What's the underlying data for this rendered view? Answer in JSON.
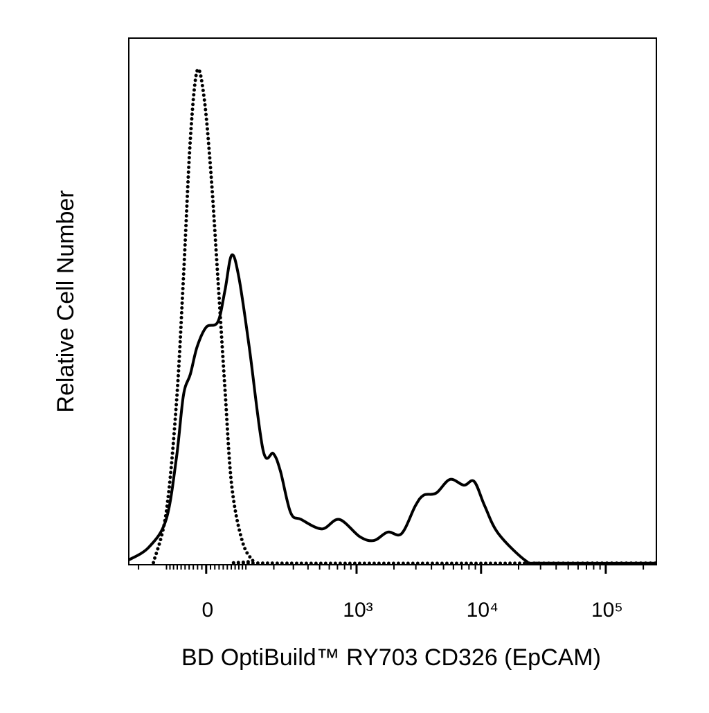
{
  "chart_data": {
    "type": "line",
    "xlabel": "BD OptiBuild™ RY703 CD326 (EpCAM)",
    "ylabel": "Relative Cell Number",
    "xscale": "biexponential",
    "xlim": [
      -246,
      254600
    ],
    "ylim": [
      0,
      100
    ],
    "xticks": [
      0,
      {
        "value": 1000,
        "label": "10³"
      },
      {
        "value": 10000,
        "label": "10⁴"
      },
      {
        "value": 100000,
        "label": "10⁵"
      }
    ],
    "xminorticks": [
      -200,
      -100,
      -90,
      -80,
      -70,
      -60,
      -50,
      -40,
      -30,
      -20,
      -10,
      10,
      20,
      30,
      40,
      50,
      60,
      70,
      80,
      90,
      100,
      200,
      300,
      400,
      500,
      600,
      700,
      800,
      900,
      2000,
      3000,
      4000,
      5000,
      6000,
      7000,
      8000,
      9000,
      20000,
      30000,
      40000,
      50000,
      60000,
      70000,
      80000,
      90000,
      200000
    ],
    "series": [
      {
        "color": "#000000",
        "style": "solid",
        "x": [
          -246,
          -159,
          -101,
          -72,
          -54,
          -37,
          -21,
          0,
          27,
          44,
          61,
          80,
          110,
          157,
          198,
          230,
          284,
          350,
          522,
          723,
          1065,
          1380,
          1781,
          2302,
          2973,
          3463,
          4362,
          5631,
          7275,
          8813,
          10680,
          13780,
          22980,
          29690,
          254600
        ],
        "values": [
          0.9,
          3.3,
          8.6,
          20.4,
          32.2,
          36.2,
          41.4,
          45.1,
          46.1,
          52.0,
          58.8,
          54.6,
          41.4,
          21.7,
          21.1,
          17.8,
          9.9,
          8.6,
          6.8,
          8.6,
          5.3,
          4.6,
          6.2,
          5.9,
          11.2,
          13.2,
          13.6,
          16.2,
          15.1,
          15.8,
          11.2,
          5.9,
          0.7,
          0.3,
          0.3
        ]
      },
      {
        "color": "#000000",
        "style": "dotted",
        "x": [
          -142,
          -101,
          -72,
          -54,
          -37,
          -21,
          -5,
          11,
          27,
          44,
          61,
          89,
          121,
          157,
          254600
        ],
        "values": [
          0.4,
          9.9,
          30.9,
          54.6,
          80.9,
          93.8,
          88.8,
          74.3,
          54.6,
          33.6,
          15.1,
          4.6,
          0.9,
          0.3,
          0.3
        ]
      }
    ]
  }
}
